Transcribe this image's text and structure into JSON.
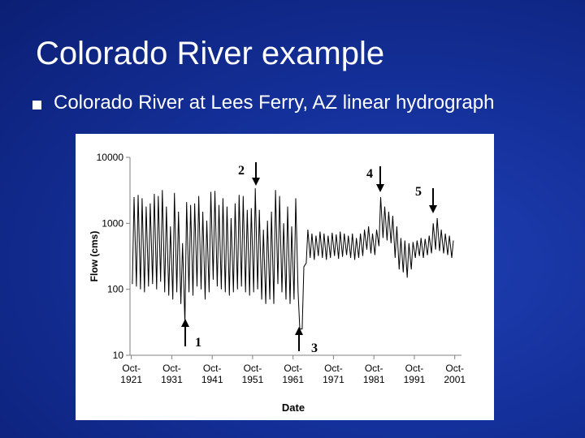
{
  "slide": {
    "title": "Colorado River example",
    "bullet": "Colorado River at Lees Ferry, AZ linear hydrograph"
  },
  "chart_data": {
    "type": "line",
    "xlabel": "Date",
    "ylabel": "Flow (cms)",
    "log_y": true,
    "color": "#000000",
    "ylim": [
      10,
      10000
    ],
    "yticks": [
      10,
      100,
      1000,
      10000
    ],
    "xlim": [
      "1921-06",
      "2003-06"
    ],
    "xticks": [
      {
        "value": "1921-10",
        "label": "Oct-1921"
      },
      {
        "value": "1931-10",
        "label": "Oct-1931"
      },
      {
        "value": "1941-10",
        "label": "Oct-1941"
      },
      {
        "value": "1951-10",
        "label": "Oct-1951"
      },
      {
        "value": "1961-10",
        "label": "Oct-1961"
      },
      {
        "value": "1971-10",
        "label": "Oct-1971"
      },
      {
        "value": "1981-10",
        "label": "Oct-1981"
      },
      {
        "value": "1991-10",
        "label": "Oct-1991"
      },
      {
        "value": "2001-10",
        "label": "Oct-2001"
      }
    ],
    "annotations": [
      "1",
      "2",
      "3",
      "4",
      "5"
    ],
    "x": [
      "1922-01",
      "1922-06",
      "1923-01",
      "1923-06",
      "1924-01",
      "1924-06",
      "1925-01",
      "1925-06",
      "1926-01",
      "1926-06",
      "1927-01",
      "1927-06",
      "1928-01",
      "1928-06",
      "1929-01",
      "1929-06",
      "1930-01",
      "1930-06",
      "1931-01",
      "1931-06",
      "1932-01",
      "1932-06",
      "1933-01",
      "1933-06",
      "1934-01",
      "1934-06",
      "1935-01",
      "1935-06",
      "1936-01",
      "1936-06",
      "1937-01",
      "1937-06",
      "1938-01",
      "1938-06",
      "1939-01",
      "1939-06",
      "1940-01",
      "1940-06",
      "1941-01",
      "1941-06",
      "1942-01",
      "1942-06",
      "1943-01",
      "1943-06",
      "1944-01",
      "1944-06",
      "1945-01",
      "1945-06",
      "1946-01",
      "1946-06",
      "1947-01",
      "1947-06",
      "1948-01",
      "1948-06",
      "1949-01",
      "1949-06",
      "1950-01",
      "1950-06",
      "1951-01",
      "1951-06",
      "1952-01",
      "1952-06",
      "1953-01",
      "1953-06",
      "1954-01",
      "1954-06",
      "1955-01",
      "1955-06",
      "1956-01",
      "1956-06",
      "1957-01",
      "1957-06",
      "1958-01",
      "1958-06",
      "1959-01",
      "1959-06",
      "1960-01",
      "1960-06",
      "1961-01",
      "1961-06",
      "1962-01",
      "1962-06",
      "1963-01",
      "1963-06",
      "1964-01",
      "1964-06",
      "1965-01",
      "1965-06",
      "1966-01",
      "1966-06",
      "1967-01",
      "1967-06",
      "1968-01",
      "1968-06",
      "1969-01",
      "1969-06",
      "1970-01",
      "1970-06",
      "1971-01",
      "1971-06",
      "1972-01",
      "1972-06",
      "1973-01",
      "1973-06",
      "1974-01",
      "1974-06",
      "1975-01",
      "1975-06",
      "1976-01",
      "1976-06",
      "1977-01",
      "1977-06",
      "1978-01",
      "1978-06",
      "1979-01",
      "1979-06",
      "1980-01",
      "1980-06",
      "1981-01",
      "1981-06",
      "1982-01",
      "1982-06",
      "1983-01",
      "1983-06",
      "1984-01",
      "1984-06",
      "1985-01",
      "1985-06",
      "1986-01",
      "1986-06",
      "1987-01",
      "1987-06",
      "1988-01",
      "1988-06",
      "1989-01",
      "1989-06",
      "1990-01",
      "1990-06",
      "1991-01",
      "1991-06",
      "1992-01",
      "1992-06",
      "1993-01",
      "1993-06",
      "1994-01",
      "1994-06",
      "1995-01",
      "1995-06",
      "1996-01",
      "1996-06",
      "1997-01",
      "1997-06",
      "1998-01",
      "1998-06",
      "1999-01",
      "1999-06",
      "2000-01",
      "2000-06",
      "2001-01",
      "2001-06"
    ],
    "values": [
      120,
      2500,
      110,
      2700,
      100,
      2400,
      90,
      1800,
      110,
      2000,
      120,
      2800,
      100,
      2600,
      130,
      3200,
      90,
      1800,
      80,
      900,
      70,
      2900,
      90,
      1500,
      60,
      500,
      30,
      2100,
      90,
      1900,
      80,
      2000,
      110,
      2600,
      100,
      1500,
      70,
      1100,
      90,
      3000,
      140,
      3100,
      110,
      1900,
      100,
      2400,
      90,
      1800,
      80,
      1200,
      90,
      2000,
      100,
      2700,
      110,
      2600,
      90,
      1600,
      80,
      1700,
      90,
      3400,
      100,
      1600,
      70,
      800,
      60,
      1100,
      70,
      1500,
      60,
      3200,
      120,
      2600,
      90,
      1000,
      70,
      1800,
      60,
      900,
      70,
      2400,
      90,
      25,
      25,
      220,
      250,
      800,
      300,
      700,
      280,
      650,
      320,
      750,
      300,
      700,
      280,
      650,
      300,
      720,
      320,
      680,
      290,
      750,
      310,
      700,
      330,
      650,
      300,
      700,
      280,
      600,
      300,
      700,
      320,
      800,
      400,
      900,
      350,
      700,
      330,
      800,
      450,
      2500,
      600,
      1800,
      550,
      1500,
      500,
      1300,
      300,
      900,
      200,
      600,
      180,
      550,
      150,
      500,
      200,
      520,
      300,
      550,
      320,
      600,
      300,
      580,
      330,
      650,
      350,
      1000,
      400,
      1200,
      380,
      800,
      350,
      700,
      330,
      650,
      300,
      550
    ]
  }
}
